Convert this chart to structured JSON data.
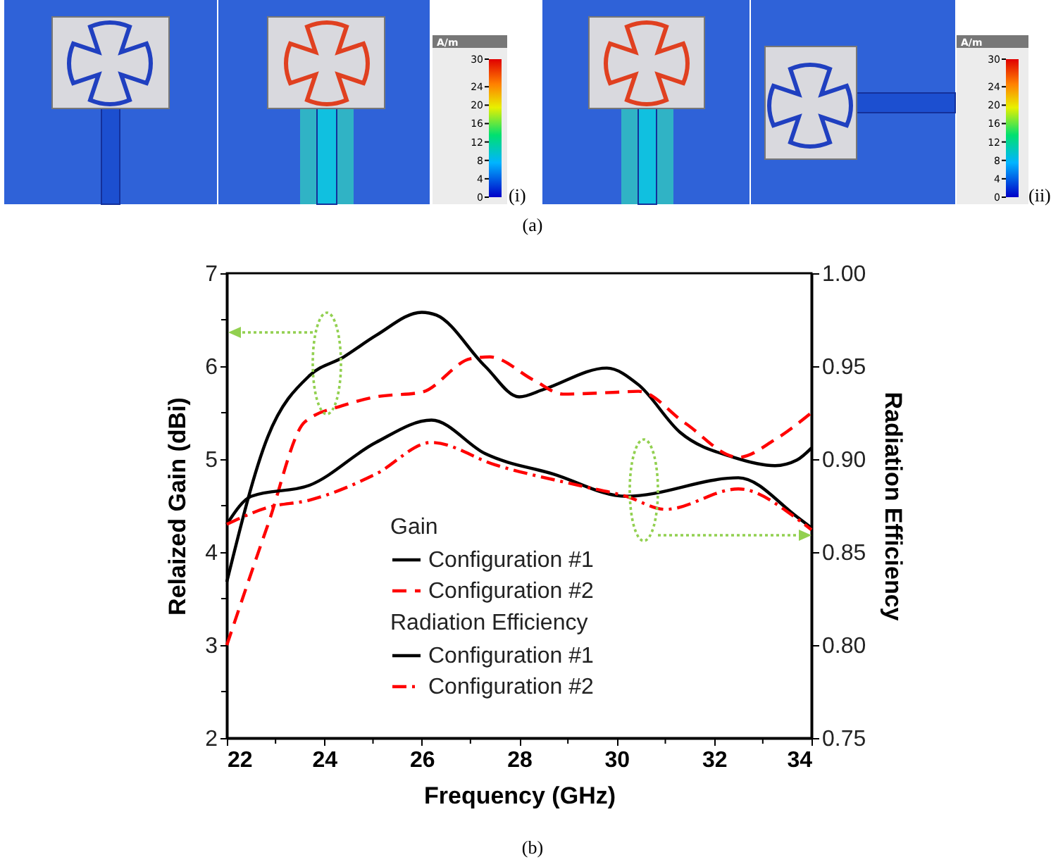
{
  "chart_data": {
    "type": "line",
    "xlabel": "Frequency (GHz)",
    "ylabel": "Relaized Gain (dBi)",
    "y2label": "Radiation Efficiency",
    "xlim": [
      22,
      34
    ],
    "xticks": [
      22,
      {
        "value": 23,
        "label": null
      },
      24,
      {
        "value": 25,
        "label": null
      },
      26,
      {
        "value": 27,
        "label": null
      },
      28,
      {
        "value": 29,
        "label": null
      },
      30,
      {
        "value": 31,
        "label": null
      },
      32,
      {
        "value": 33,
        "label": null
      },
      34
    ],
    "ylim": [
      2,
      7
    ],
    "yticks": [
      2,
      {
        "value": 2.5,
        "label": null
      },
      3,
      {
        "value": 3.5,
        "label": null
      },
      4,
      {
        "value": 4.5,
        "label": null
      },
      5,
      {
        "value": 5.5,
        "label": null
      },
      6,
      {
        "value": 6.5,
        "label": null
      },
      7
    ],
    "y2lim": [
      0.75,
      1.0
    ],
    "y2ticks": [
      0.75,
      {
        "value": 0.8,
        "label": "0.80"
      },
      0.85,
      {
        "value": 0.9,
        "label": "0.90"
      },
      0.95,
      {
        "value": 1.0,
        "label": "1.00"
      }
    ],
    "grid": false,
    "legend": "bottom",
    "marker": "none",
    "annotations": [
      "Gain",
      "Radiation Efficiency",
      "(a)",
      "(b)",
      "(i)",
      "(ii)",
      "A/m",
      "A/m",
      "30",
      "24",
      "20",
      "16",
      "12",
      "8",
      "4",
      "0",
      "30",
      "24",
      "20",
      "16",
      "12",
      "8",
      "4",
      "0"
    ],
    "series": [
      {
        "name": "Configuration #1",
        "color": "#000000",
        "line_style": "solid",
        "x": [
          22,
          22.84,
          23.7,
          24.4,
          25.06,
          26.0,
          26.3,
          27.3,
          28.0,
          28.5,
          29.8,
          30.45,
          31.3,
          32.4,
          33.25,
          33.7,
          34
        ],
        "values": [
          3.68,
          5.24,
          5.9,
          6.1,
          6.33,
          6.58,
          6.55,
          6.0,
          5.67,
          5.75,
          5.98,
          5.8,
          5.29,
          5.02,
          4.93,
          4.99,
          5.12
        ]
      },
      {
        "name": "Configuration #2",
        "color": "#ff0000",
        "line_style": "dashed",
        "x": [
          22,
          22.84,
          23.6,
          24.4,
          25.06,
          26.0,
          27.0,
          27.4,
          28.3,
          28.9,
          30.0,
          30.45,
          31.4,
          32.5,
          33.25,
          34
        ],
        "values": [
          3.0,
          4.29,
          5.4,
          5.58,
          5.67,
          5.72,
          6.08,
          6.1,
          5.85,
          5.7,
          5.72,
          5.73,
          5.39,
          5.02,
          5.21,
          5.5
        ]
      },
      {
        "name": "Configuration #1",
        "color": "#000000",
        "line_style": "solid",
        "axis": "y2",
        "x": [
          22,
          22.5,
          23.7,
          25.06,
          26.2,
          27.3,
          28.7,
          30.2,
          32.5,
          33.7,
          34
        ],
        "values": [
          0.865,
          0.88,
          0.886,
          0.909,
          0.921,
          0.903,
          0.892,
          0.88,
          0.89,
          0.869,
          0.863
        ]
      },
      {
        "name": "Configuration #2",
        "color": "#ff0000",
        "line_style": "dashdot",
        "axis": "y2",
        "x": [
          22,
          22.84,
          23.7,
          25.06,
          26.2,
          27.5,
          29.2,
          30.2,
          31.0,
          32.5,
          33.7,
          34
        ],
        "values": [
          0.865,
          0.874,
          0.878,
          0.892,
          0.909,
          0.897,
          0.886,
          0.88,
          0.873,
          0.884,
          0.868,
          0.862
        ]
      }
    ]
  }
}
